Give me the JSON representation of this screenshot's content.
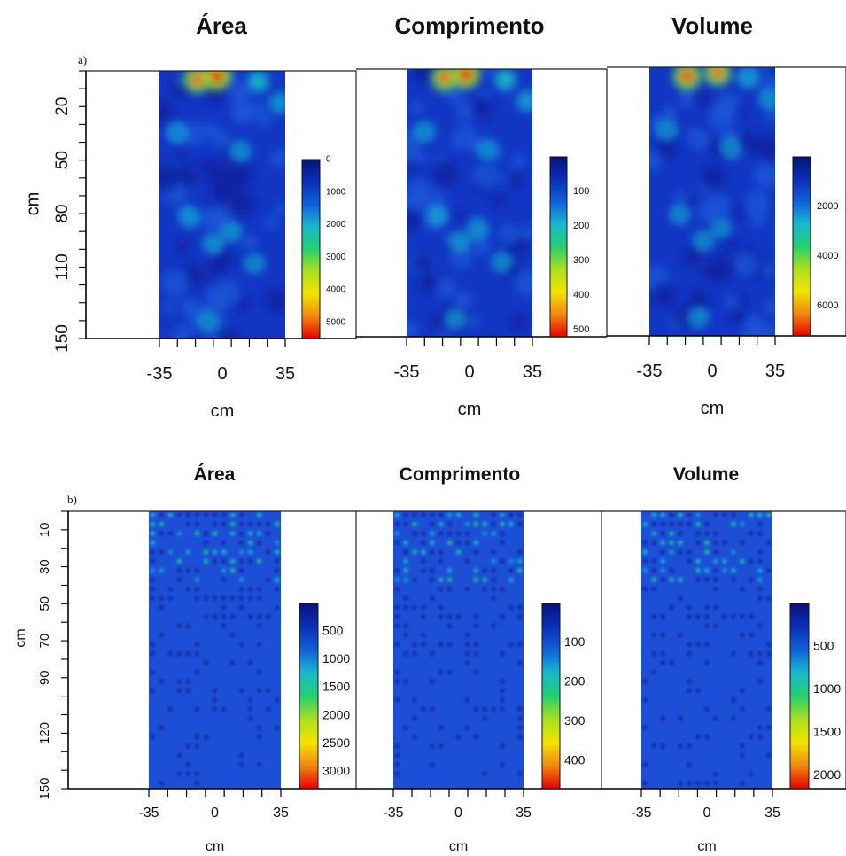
{
  "figure": {
    "row_labels": [
      "a)",
      "b)"
    ],
    "colors": {
      "ramp": [
        "#08127a",
        "#0b2fb8",
        "#1060d8",
        "#18b8d0",
        "#22d070",
        "#a8e020",
        "#f2e400",
        "#f08a10",
        "#e80000"
      ],
      "deep_blue": "#0e1fa8",
      "field_blue": "#1d4fd6"
    }
  },
  "chart_data": [
    {
      "type": "heatmap",
      "panel": "a-area",
      "row": 0,
      "title": "Área",
      "xlabel": "cm",
      "ylabel": "cm",
      "x_ticks": [
        "-35",
        "0",
        "35"
      ],
      "xlim": [
        -35,
        35
      ],
      "y_ticks": [
        "20",
        "50",
        "80",
        "110",
        "150"
      ],
      "ylim": [
        0,
        150
      ],
      "legend_ticks": [
        "0",
        "1000",
        "2000",
        "3000",
        "4000",
        "5000"
      ],
      "legend_range": [
        0,
        5500
      ],
      "hotspots": [
        {
          "x": -14,
          "y": 5,
          "value": 5000
        },
        {
          "x": -3,
          "y": 3,
          "value": 5500
        },
        {
          "x": 20,
          "y": 6,
          "value": 2200
        },
        {
          "x": 32,
          "y": 18,
          "value": 1500
        },
        {
          "x": -25,
          "y": 35,
          "value": 1200
        },
        {
          "x": 10,
          "y": 45,
          "value": 1300
        },
        {
          "x": -18,
          "y": 82,
          "value": 1500
        },
        {
          "x": -5,
          "y": 97,
          "value": 1400
        },
        {
          "x": 5,
          "y": 90,
          "value": 1300
        },
        {
          "x": 18,
          "y": 108,
          "value": 900
        },
        {
          "x": -8,
          "y": 140,
          "value": 1000
        }
      ]
    },
    {
      "type": "heatmap",
      "panel": "a-length",
      "row": 0,
      "title": "Comprimento",
      "xlabel": "cm",
      "ylabel": "",
      "x_ticks": [
        "-35",
        "0",
        "35"
      ],
      "xlim": [
        -35,
        35
      ],
      "y_ticks": [],
      "ylim": [
        0,
        150
      ],
      "legend_ticks": [
        "100",
        "200",
        "300",
        "400",
        "500"
      ],
      "legend_range": [
        0,
        520
      ],
      "hotspots": [
        {
          "x": -14,
          "y": 5,
          "value": 470
        },
        {
          "x": -2,
          "y": 3,
          "value": 520
        },
        {
          "x": 20,
          "y": 6,
          "value": 220
        },
        {
          "x": 32,
          "y": 18,
          "value": 150
        },
        {
          "x": -25,
          "y": 35,
          "value": 120
        },
        {
          "x": 10,
          "y": 45,
          "value": 130
        },
        {
          "x": -18,
          "y": 82,
          "value": 150
        },
        {
          "x": -5,
          "y": 97,
          "value": 140
        },
        {
          "x": 5,
          "y": 90,
          "value": 130
        },
        {
          "x": 18,
          "y": 108,
          "value": 90
        },
        {
          "x": -8,
          "y": 140,
          "value": 100
        }
      ]
    },
    {
      "type": "heatmap",
      "panel": "a-volume",
      "row": 0,
      "title": "Volume",
      "xlabel": "cm",
      "ylabel": "",
      "x_ticks": [
        "-35",
        "0",
        "35"
      ],
      "xlim": [
        -35,
        35
      ],
      "y_ticks": [],
      "ylim": [
        0,
        150
      ],
      "legend_ticks": [
        "2000",
        "4000",
        "6000"
      ],
      "legend_range": [
        0,
        7200
      ],
      "hotspots": [
        {
          "x": -14,
          "y": 5,
          "value": 6800
        },
        {
          "x": 3,
          "y": 3,
          "value": 6500
        },
        {
          "x": 20,
          "y": 6,
          "value": 2000
        },
        {
          "x": 32,
          "y": 18,
          "value": 1500
        },
        {
          "x": -25,
          "y": 35,
          "value": 1000
        },
        {
          "x": 10,
          "y": 45,
          "value": 1000
        },
        {
          "x": -18,
          "y": 82,
          "value": 1200
        },
        {
          "x": -5,
          "y": 97,
          "value": 1100
        },
        {
          "x": 5,
          "y": 90,
          "value": 1000
        },
        {
          "x": -8,
          "y": 140,
          "value": 900
        }
      ]
    },
    {
      "type": "heatmap",
      "panel": "b-area",
      "row": 1,
      "title": "Área",
      "xlabel": "cm",
      "ylabel": "cm",
      "x_ticks": [
        "-35",
        "0",
        "35"
      ],
      "xlim": [
        -35,
        35
      ],
      "y_ticks": [
        "10",
        "30",
        "50",
        "70",
        "90",
        "120",
        "150"
      ],
      "ylim": [
        0,
        150
      ],
      "legend_ticks": [
        "500",
        "1000",
        "1500",
        "2000",
        "2500",
        "3000"
      ],
      "legend_range": [
        0,
        3300
      ]
    },
    {
      "type": "heatmap",
      "panel": "b-length",
      "row": 1,
      "title": "Comprimento",
      "xlabel": "cm",
      "ylabel": "",
      "x_ticks": [
        "-35",
        "0",
        "35"
      ],
      "xlim": [
        -35,
        35
      ],
      "y_ticks": [],
      "ylim": [
        0,
        150
      ],
      "legend_ticks": [
        "100",
        "200",
        "300",
        "400"
      ],
      "legend_range": [
        0,
        470
      ]
    },
    {
      "type": "heatmap",
      "panel": "b-volume",
      "row": 1,
      "title": "Volume",
      "xlabel": "cm",
      "ylabel": "",
      "x_ticks": [
        "-35",
        "0",
        "35"
      ],
      "xlim": [
        -35,
        35
      ],
      "y_ticks": [],
      "ylim": [
        0,
        150
      ],
      "legend_ticks": [
        "500",
        "1000",
        "1500",
        "2000"
      ],
      "legend_range": [
        0,
        2150
      ]
    }
  ]
}
